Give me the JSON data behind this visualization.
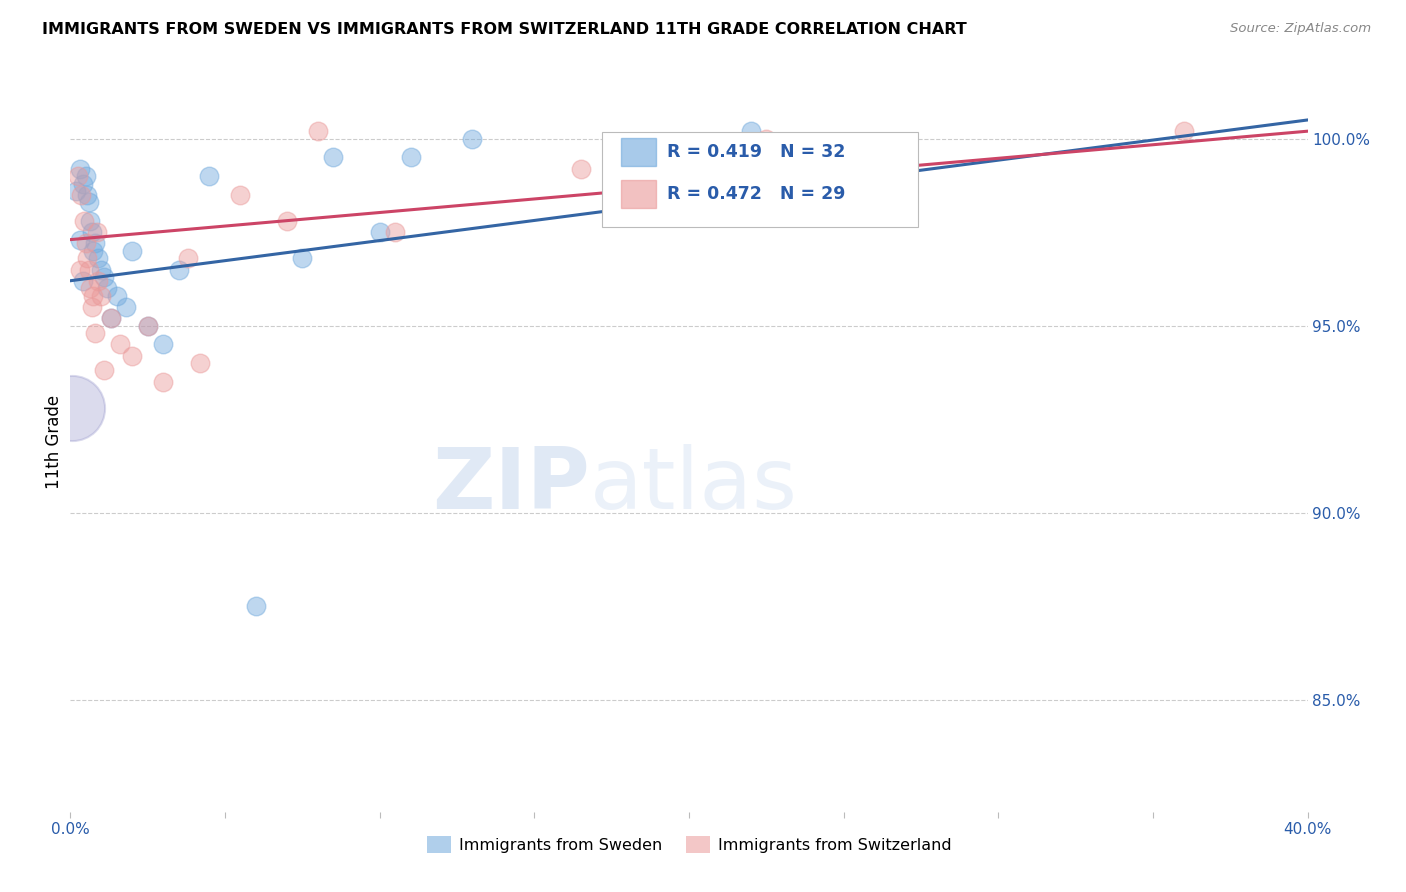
{
  "title": "IMMIGRANTS FROM SWEDEN VS IMMIGRANTS FROM SWITZERLAND 11TH GRADE CORRELATION CHART",
  "source": "Source: ZipAtlas.com",
  "ylabel": "11th Grade",
  "yticks": [
    85.0,
    90.0,
    95.0,
    100.0
  ],
  "ytick_labels": [
    "85.0%",
    "90.0%",
    "95.0%",
    "100.0%"
  ],
  "xmin": 0.0,
  "xmax": 40.0,
  "ymin": 82.0,
  "ymax": 101.8,
  "sweden_color": "#6fa8dc",
  "switzerland_color": "#ea9999",
  "trendline_sweden_color": "#3465a4",
  "trendline_switzerland_color": "#cc4466",
  "legend_sweden_label": "Immigrants from Sweden",
  "legend_switzerland_label": "Immigrants from Switzerland",
  "R_sweden": 0.419,
  "N_sweden": 32,
  "R_switzerland": 0.472,
  "N_switzerland": 29,
  "sweden_x": [
    0.3,
    0.4,
    0.5,
    0.55,
    0.6,
    0.65,
    0.7,
    0.75,
    0.8,
    0.9,
    1.0,
    1.1,
    1.2,
    1.5,
    1.8,
    2.0,
    2.5,
    3.0,
    3.5,
    4.5,
    6.0,
    7.5,
    8.5,
    10.0,
    11.0,
    13.0,
    18.0,
    22.0,
    0.2,
    0.3,
    0.4,
    1.3
  ],
  "sweden_y": [
    99.2,
    98.8,
    99.0,
    98.5,
    98.3,
    97.8,
    97.5,
    97.0,
    97.2,
    96.8,
    96.5,
    96.3,
    96.0,
    95.8,
    95.5,
    97.0,
    95.0,
    94.5,
    96.5,
    99.0,
    87.5,
    96.8,
    99.5,
    97.5,
    99.5,
    100.0,
    99.8,
    100.2,
    98.6,
    97.3,
    96.2,
    95.2
  ],
  "sweden_big": false,
  "switzerland_x": [
    0.25,
    0.35,
    0.45,
    0.5,
    0.55,
    0.6,
    0.65,
    0.7,
    0.75,
    0.8,
    0.85,
    0.9,
    1.0,
    1.1,
    1.3,
    1.6,
    2.0,
    2.5,
    3.0,
    3.8,
    4.2,
    5.5,
    7.0,
    8.0,
    10.5,
    16.5,
    22.5,
    36.0,
    0.3
  ],
  "switzerland_y": [
    99.0,
    98.5,
    97.8,
    97.2,
    96.8,
    96.5,
    96.0,
    95.5,
    95.8,
    94.8,
    97.5,
    96.2,
    95.8,
    93.8,
    95.2,
    94.5,
    94.2,
    95.0,
    93.5,
    96.8,
    94.0,
    98.5,
    97.8,
    100.2,
    97.5,
    99.2,
    100.0,
    100.2,
    96.5
  ],
  "large_bubble_x": 0.05,
  "large_bubble_y": 92.8,
  "large_bubble_color": "#9999cc",
  "large_bubble_size": 2200,
  "watermark_zip": "ZIP",
  "watermark_atlas": "atlas",
  "background_color": "#ffffff",
  "grid_color": "#cccccc",
  "axis_color": "#2a5caa"
}
